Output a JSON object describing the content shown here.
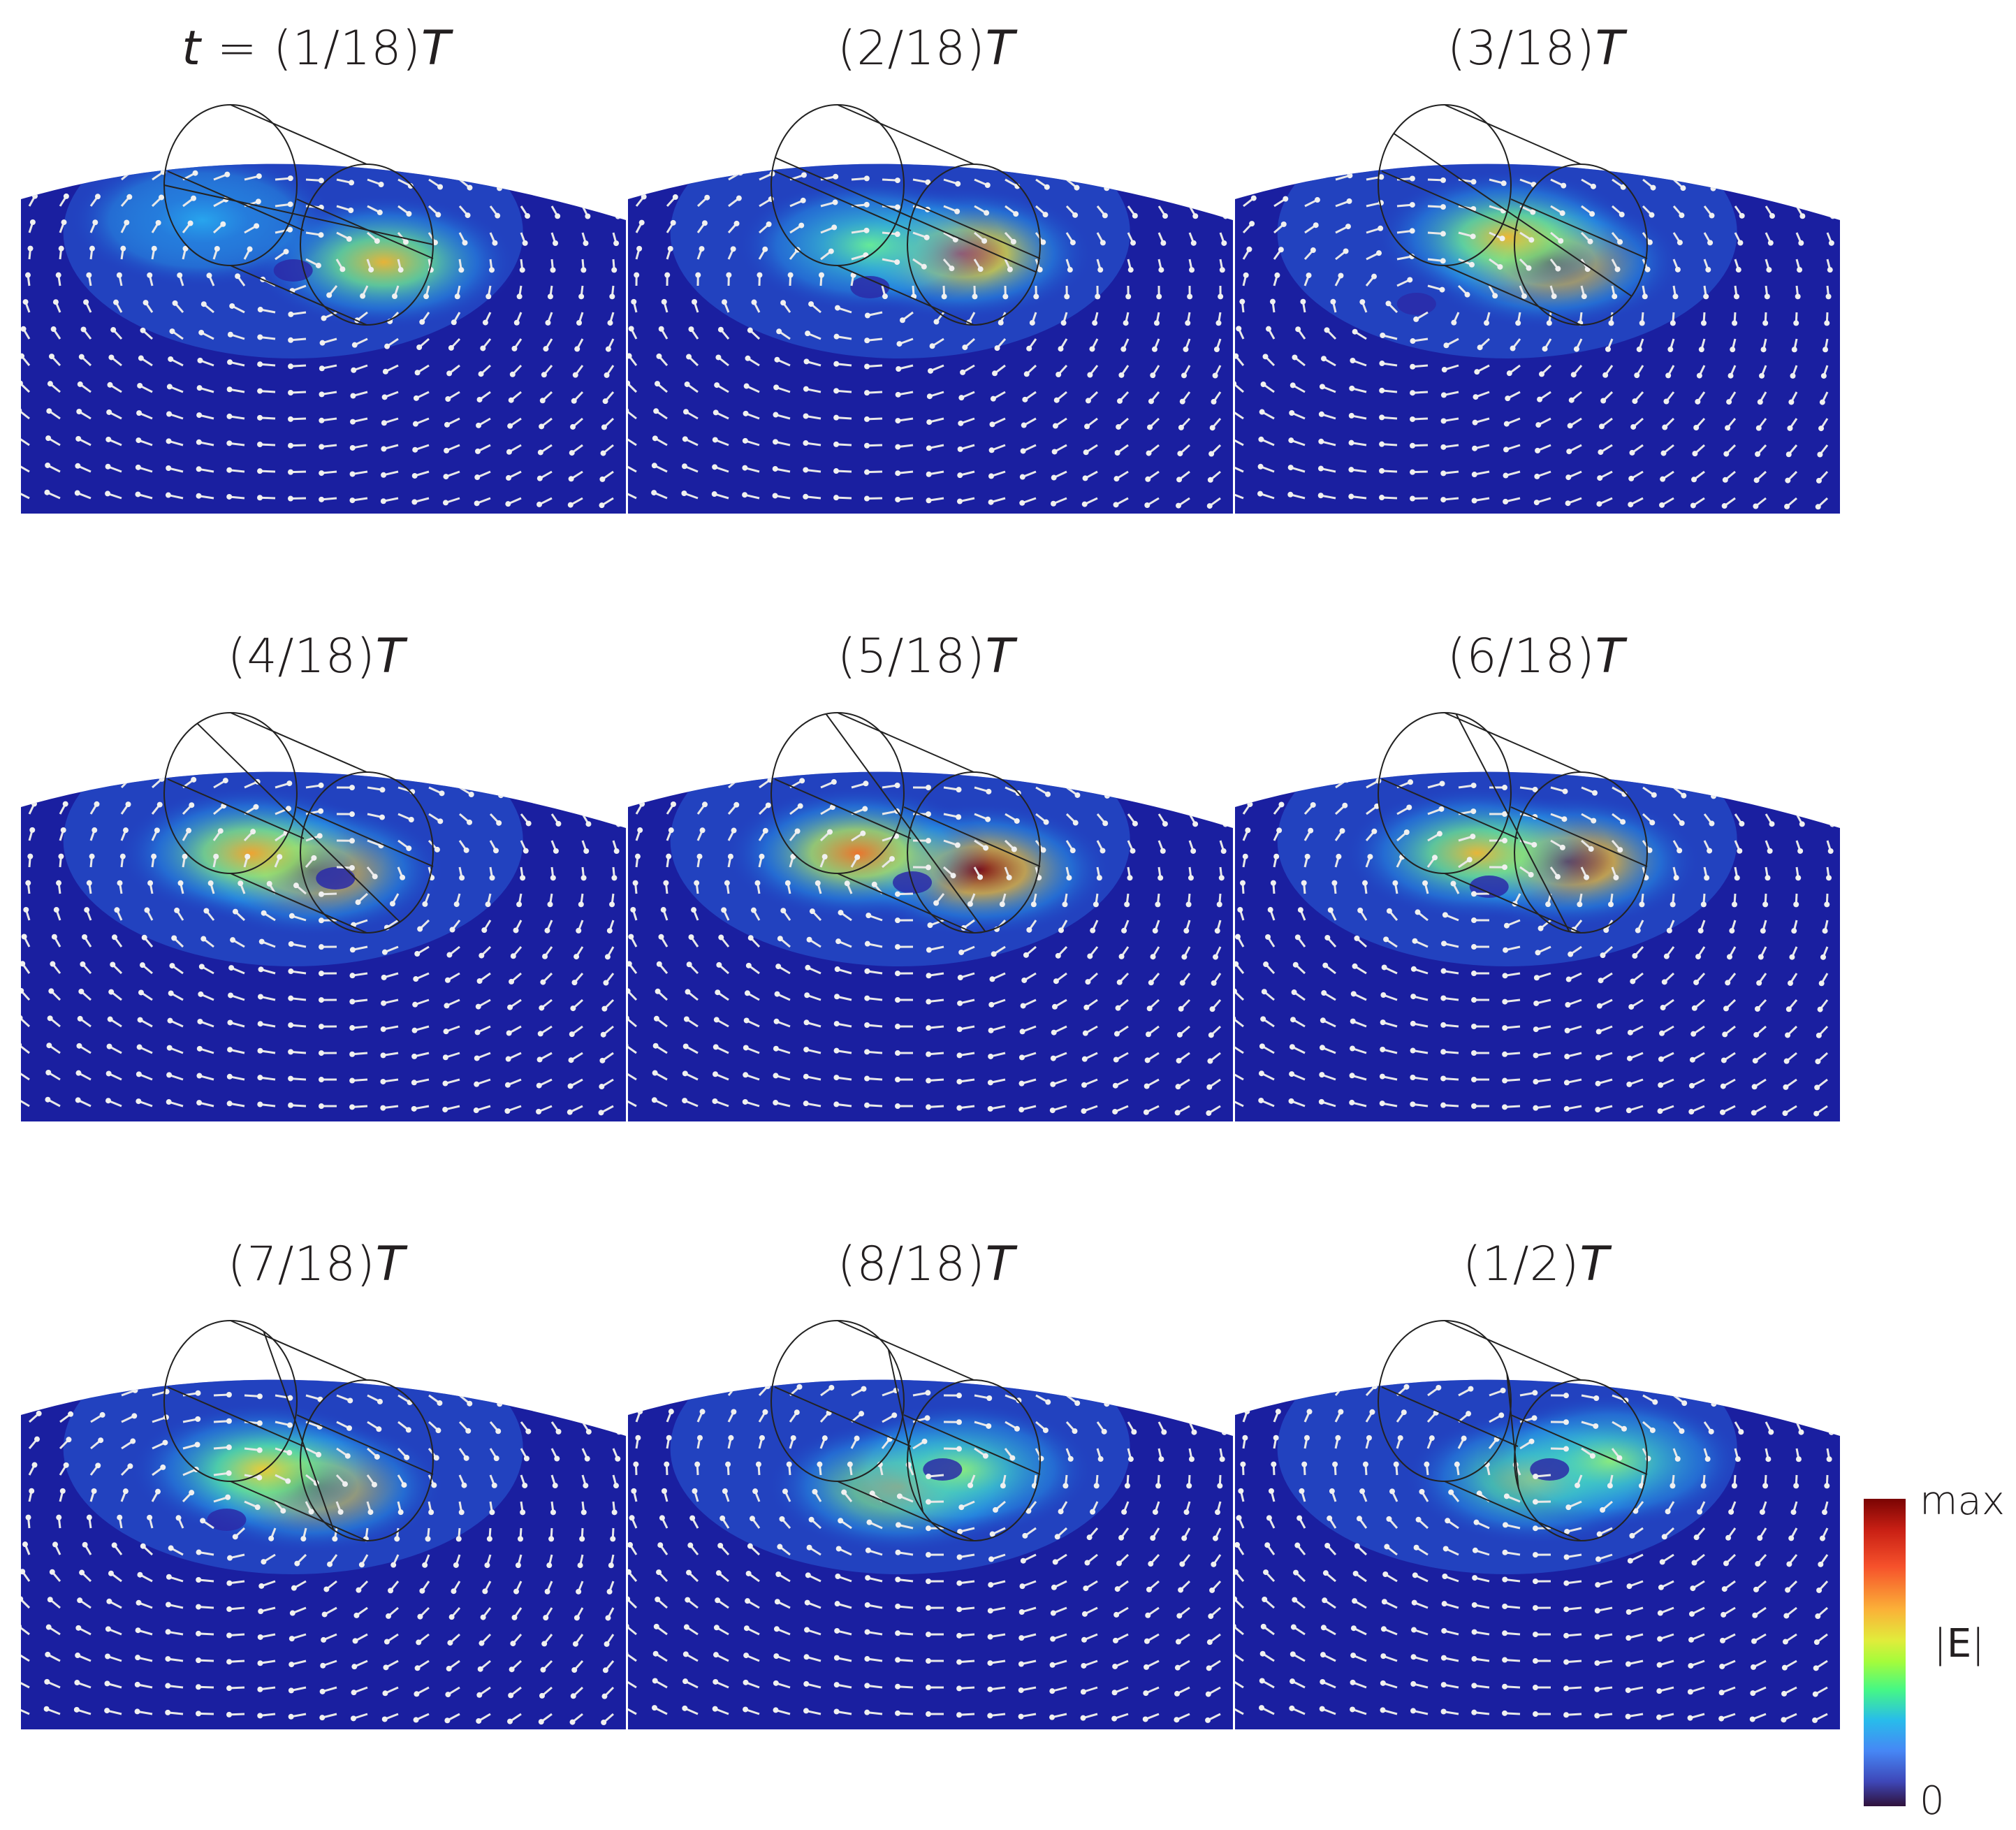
{
  "panels": [
    {
      "pre": "t",
      "label": "= (1/18)",
      "post": "T",
      "hot": [
        [
          0.6,
          0.4,
          0.55
        ],
        [
          0.3,
          0.3,
          0.0
        ]
      ],
      "pole": [
        0.45,
        0.42
      ],
      "vort2": [
        0.1,
        0.8
      ]
    },
    {
      "pre": "",
      "label": "(2/18)",
      "post": "T",
      "hot": [
        [
          0.55,
          0.38,
          0.85
        ],
        [
          0.4,
          0.36,
          0.25
        ]
      ],
      "pole": [
        0.4,
        0.46
      ],
      "vort2": [
        0.12,
        0.8
      ]
    },
    {
      "pre": "",
      "label": "(3/18)",
      "post": "T",
      "hot": [
        [
          0.52,
          0.4,
          1.0
        ],
        [
          0.45,
          0.34,
          0.55
        ]
      ],
      "pole": [
        0.3,
        0.5
      ],
      "vort2": [
        0.15,
        0.7
      ]
    },
    {
      "pre": "",
      "label": "(4/18)",
      "post": "T",
      "hot": [
        [
          0.48,
          0.4,
          1.0
        ],
        [
          0.38,
          0.36,
          0.6
        ]
      ],
      "pole": [
        0.52,
        0.42
      ],
      "vort2": [
        0.1,
        0.75
      ]
    },
    {
      "pre": "",
      "label": "(5/18)",
      "post": "T",
      "hot": [
        [
          0.58,
          0.4,
          1.0
        ],
        [
          0.38,
          0.36,
          0.7
        ]
      ],
      "pole": [
        0.47,
        0.43
      ],
      "vort2": [
        0.1,
        0.75
      ]
    },
    {
      "pre": "",
      "label": "(6/18)",
      "post": "T",
      "hot": [
        [
          0.55,
          0.38,
          1.0
        ],
        [
          0.4,
          0.36,
          0.55
        ]
      ],
      "pole": [
        0.42,
        0.44
      ],
      "vort2": [
        0.1,
        0.75
      ]
    },
    {
      "pre": "",
      "label": "(7/18)",
      "post": "T",
      "hot": [
        [
          0.48,
          0.42,
          1.0
        ],
        [
          0.4,
          0.38,
          0.5
        ]
      ],
      "pole": [
        0.34,
        0.5
      ],
      "vort2": [
        0.12,
        0.75
      ]
    },
    {
      "pre": "",
      "label": "(8/18)",
      "post": "T",
      "hot": [
        [
          0.45,
          0.42,
          0.6
        ],
        [
          0.55,
          0.38,
          0.3
        ]
      ],
      "pole": [
        0.52,
        0.38
      ],
      "vort2": [
        0.2,
        0.7
      ]
    },
    {
      "pre": "",
      "label": "(1/2)",
      "post": "T",
      "hot": [
        [
          0.5,
          0.4,
          0.45
        ],
        [
          0.62,
          0.36,
          0.3
        ]
      ],
      "pole": [
        0.52,
        0.38
      ],
      "vort2": [
        0.1,
        0.85
      ]
    }
  ],
  "colorbar": {
    "max_label": "max",
    "min_label": "0",
    "quantity_label": "|E|"
  }
}
